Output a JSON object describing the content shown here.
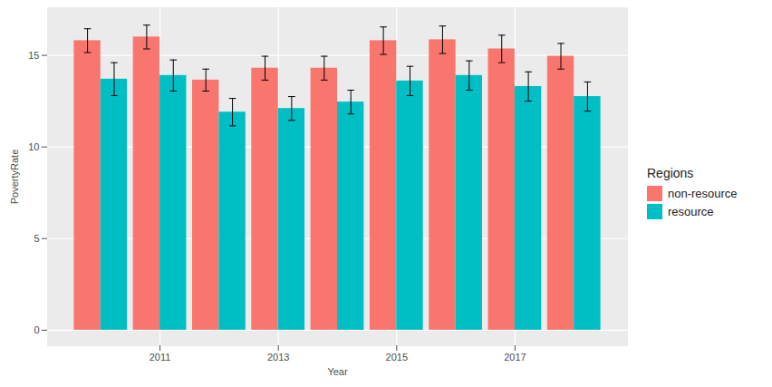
{
  "chart_data": {
    "type": "bar",
    "x_label": "Year",
    "y_label": "PovertyRate",
    "legend_title": "Regions",
    "legend": "right",
    "x": [
      2010,
      2011,
      2012,
      2013,
      2014,
      2015,
      2016,
      2017,
      2018
    ],
    "series": [
      {
        "name": "non-resource",
        "color": "#F8766D",
        "values": [
          15.8,
          16.0,
          13.65,
          14.3,
          14.3,
          15.8,
          15.85,
          15.35,
          14.95
        ],
        "errors": [
          0.65,
          0.65,
          0.6,
          0.65,
          0.65,
          0.75,
          0.75,
          0.75,
          0.7
        ]
      },
      {
        "name": "resource",
        "color": "#00BFC4",
        "values": [
          13.7,
          13.9,
          11.9,
          12.1,
          12.45,
          13.6,
          13.9,
          13.3,
          12.75
        ],
        "errors": [
          0.9,
          0.85,
          0.75,
          0.65,
          0.65,
          0.8,
          0.8,
          0.8,
          0.8
        ]
      }
    ],
    "xlim": [
      2009.1,
      2018.9
    ],
    "xticks": [
      2011,
      2013,
      2015,
      2017
    ],
    "ylim": [
      -0.85,
      17.6
    ],
    "yticks": [
      0,
      5,
      10,
      15
    ],
    "grid": true
  }
}
